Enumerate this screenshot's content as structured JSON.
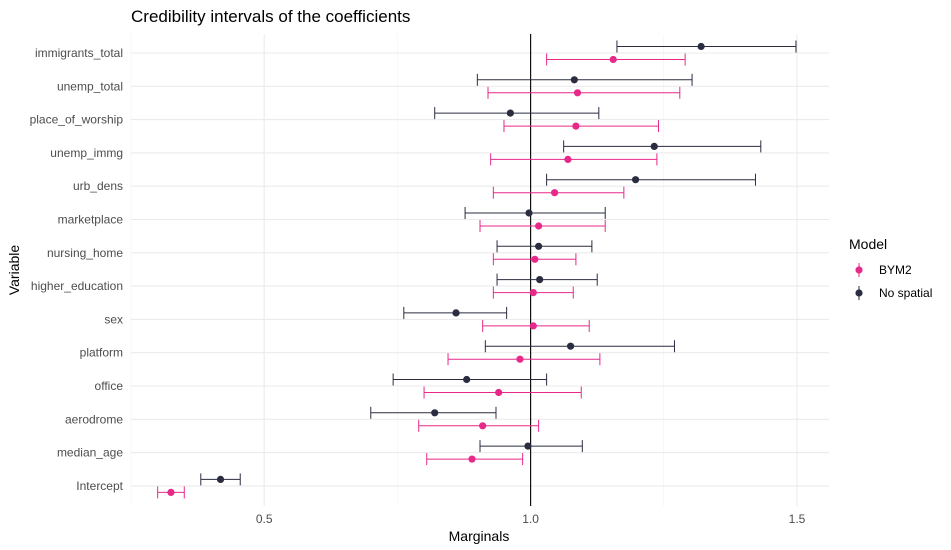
{
  "chart_data": {
    "type": "errorbar",
    "title": "Credibility intervals of the coefficients",
    "xlabel": "Marginals",
    "ylabel": "Variable",
    "xlim": [
      0.25,
      1.56
    ],
    "xticks": [
      0.5,
      1.0,
      1.5
    ],
    "xtick_labels": [
      "0.5",
      "1.0",
      "1.5"
    ],
    "reference_line": 1.0,
    "grid": true,
    "legend": {
      "title": "Model",
      "position": "right"
    },
    "categories": [
      "immigrants_total",
      "unemp_total",
      "place_of_worship",
      "unemp_immg",
      "urb_dens",
      "marketplace",
      "nursing_home",
      "higher_education",
      "sex",
      "platform",
      "office",
      "aerodrome",
      "median_age",
      "Intercept"
    ],
    "series": [
      {
        "name": "BYM2",
        "color": "#e7298a",
        "mean": [
          1.155,
          1.088,
          1.085,
          1.07,
          1.045,
          1.015,
          1.008,
          1.005,
          1.005,
          0.98,
          0.94,
          0.91,
          0.89,
          0.325
        ],
        "lower": [
          1.03,
          0.92,
          0.95,
          0.925,
          0.93,
          0.905,
          0.93,
          0.93,
          0.91,
          0.845,
          0.8,
          0.79,
          0.805,
          0.3
        ],
        "upper": [
          1.29,
          1.28,
          1.24,
          1.237,
          1.175,
          1.14,
          1.085,
          1.08,
          1.11,
          1.13,
          1.095,
          1.015,
          0.985,
          0.35
        ]
      },
      {
        "name": "No spatial",
        "color": "#2a2c40",
        "mean": [
          1.32,
          1.082,
          0.962,
          1.232,
          1.197,
          0.997,
          1.015,
          1.017,
          0.86,
          1.075,
          0.88,
          0.82,
          0.995,
          0.418
        ],
        "lower": [
          1.162,
          0.9,
          0.82,
          1.062,
          1.03,
          0.877,
          0.937,
          0.937,
          0.762,
          0.915,
          0.742,
          0.7,
          0.905,
          0.381
        ],
        "upper": [
          1.498,
          1.303,
          1.128,
          1.432,
          1.422,
          1.14,
          1.115,
          1.125,
          0.955,
          1.27,
          1.03,
          0.935,
          1.097,
          0.455
        ]
      }
    ]
  }
}
